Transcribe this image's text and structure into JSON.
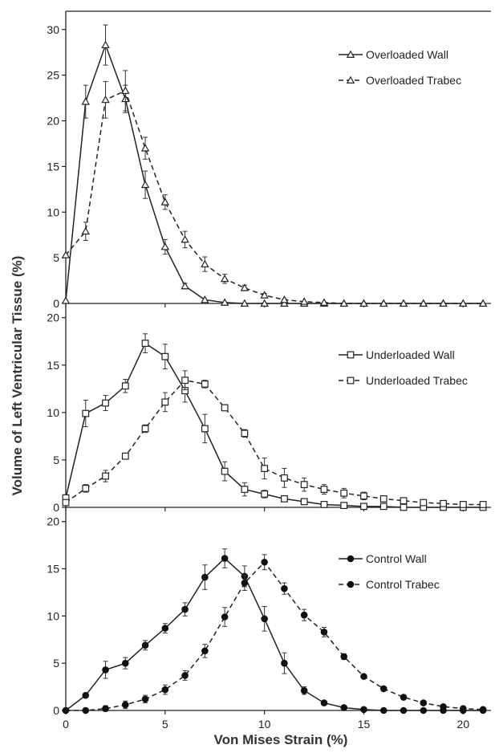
{
  "figure": {
    "xlabel": "Von Mises Strain (%)",
    "ylabel": "Volume of Left Ventricular Tissue (%)"
  },
  "chart_data": [
    {
      "type": "line",
      "panel": "top",
      "xlim": [
        0,
        21.4
      ],
      "ylim": [
        0,
        32
      ],
      "x_ticks": [
        0,
        5,
        10,
        15,
        20
      ],
      "y_ticks": [
        0,
        5,
        10,
        15,
        20,
        25,
        30
      ],
      "legend_position": "top-right",
      "series": [
        {
          "name": "Overloaded Wall",
          "marker": "triangle",
          "line_style": "solid",
          "x": [
            0,
            1,
            2,
            3,
            4,
            5,
            6,
            7,
            8,
            9,
            10,
            11,
            12,
            13,
            14,
            15,
            16,
            17,
            18,
            19,
            20,
            21
          ],
          "y": [
            0.3,
            22.1,
            28.3,
            22.4,
            13.0,
            6.2,
            1.9,
            0.4,
            0.1,
            0,
            0,
            0,
            0,
            0,
            0,
            0,
            0,
            0,
            0,
            0,
            0,
            0
          ],
          "err": [
            0,
            1.8,
            2.2,
            1.5,
            1.5,
            0.8,
            0.3,
            0,
            0,
            0,
            0,
            0,
            0,
            0,
            0,
            0,
            0,
            0,
            0,
            0,
            0,
            0
          ]
        },
        {
          "name": "Overloaded Trabec",
          "marker": "triangle",
          "line_style": "dashed",
          "x": [
            0,
            1,
            2,
            3,
            4,
            5,
            6,
            7,
            8,
            9,
            10,
            11,
            12,
            13,
            14,
            15,
            16,
            17,
            18,
            19,
            20,
            21
          ],
          "y": [
            5.3,
            7.9,
            22.3,
            23.3,
            17.0,
            11.1,
            7.0,
            4.3,
            2.7,
            1.7,
            0.9,
            0.4,
            0.2,
            0.1,
            0,
            0,
            0,
            0,
            0,
            0,
            0,
            0
          ],
          "err": [
            0,
            1.0,
            2.0,
            2.2,
            1.2,
            0.8,
            0.9,
            0.8,
            0.5,
            0.3,
            0.2,
            0.1,
            0,
            0,
            0,
            0,
            0,
            0,
            0,
            0,
            0,
            0
          ]
        }
      ]
    },
    {
      "type": "line",
      "panel": "middle",
      "xlim": [
        0,
        21.4
      ],
      "ylim": [
        0,
        21.5
      ],
      "x_ticks": [
        0,
        5,
        10,
        15,
        20
      ],
      "y_ticks": [
        0,
        5,
        10,
        15,
        20
      ],
      "legend_position": "top-right",
      "series": [
        {
          "name": "Underloaded Wall",
          "marker": "square",
          "line_style": "solid",
          "x": [
            0,
            1,
            2,
            3,
            4,
            5,
            6,
            7,
            8,
            9,
            10,
            11,
            12,
            13,
            14,
            15,
            16,
            17,
            18,
            19,
            20,
            21
          ],
          "y": [
            1.0,
            9.9,
            11.0,
            12.8,
            17.3,
            15.9,
            12.3,
            8.3,
            3.8,
            1.9,
            1.4,
            0.9,
            0.6,
            0.3,
            0.2,
            0.1,
            0.1,
            0,
            0,
            0,
            0,
            0
          ],
          "err": [
            0,
            1.4,
            0.8,
            0.7,
            1.0,
            1.3,
            1.2,
            1.5,
            1.0,
            0.7,
            0.4,
            0.2,
            0.1,
            0,
            0,
            0,
            0,
            0,
            0,
            0,
            0,
            0
          ]
        },
        {
          "name": "Underloaded Trabec",
          "marker": "square",
          "line_style": "dashed",
          "x": [
            0,
            1,
            2,
            3,
            4,
            5,
            6,
            7,
            8,
            9,
            10,
            11,
            12,
            13,
            14,
            15,
            16,
            17,
            18,
            19,
            20,
            21
          ],
          "y": [
            0.5,
            2.0,
            3.3,
            5.4,
            8.3,
            11.1,
            13.4,
            13.0,
            10.5,
            7.8,
            4.1,
            3.1,
            2.4,
            1.9,
            1.5,
            1.2,
            0.9,
            0.7,
            0.5,
            0.4,
            0.3,
            0.3
          ],
          "err": [
            0,
            0.4,
            0.6,
            0.3,
            0.4,
            1.0,
            1.0,
            0.4,
            0.3,
            0.4,
            1.1,
            1.0,
            0.7,
            0.5,
            0.5,
            0.4,
            0.3,
            0.2,
            0.2,
            0.1,
            0.1,
            0.1
          ]
        }
      ]
    },
    {
      "type": "line",
      "panel": "bottom",
      "xlim": [
        0,
        21.4
      ],
      "ylim": [
        0,
        21.5
      ],
      "x_ticks": [
        0,
        5,
        10,
        15,
        20
      ],
      "y_ticks": [
        0,
        5,
        10,
        15,
        20
      ],
      "legend_position": "top-right",
      "series": [
        {
          "name": "Control Wall",
          "marker": "circle",
          "line_style": "solid",
          "x": [
            0,
            1,
            2,
            3,
            4,
            5,
            6,
            7,
            8,
            9,
            10,
            11,
            12,
            13,
            14,
            15,
            16,
            17,
            18,
            19,
            20,
            21
          ],
          "y": [
            0.0,
            1.6,
            4.3,
            5.0,
            6.9,
            8.7,
            10.7,
            14.1,
            16.1,
            14.2,
            9.7,
            5.0,
            2.1,
            0.8,
            0.3,
            0.1,
            0,
            0,
            0,
            0,
            0,
            0
          ],
          "err": [
            0,
            0.2,
            0.9,
            0.6,
            0.5,
            0.5,
            0.7,
            1.3,
            1.0,
            1.1,
            1.3,
            1.1,
            0.4,
            0.1,
            0,
            0,
            0,
            0,
            0,
            0,
            0,
            0
          ]
        },
        {
          "name": "Control Trabec",
          "marker": "circle",
          "line_style": "dashed",
          "x": [
            0,
            1,
            2,
            3,
            4,
            5,
            6,
            7,
            8,
            9,
            10,
            11,
            12,
            13,
            14,
            15,
            16,
            17,
            18,
            19,
            20,
            21
          ],
          "y": [
            0.0,
            0.0,
            0.2,
            0.6,
            1.2,
            2.2,
            3.7,
            6.3,
            9.9,
            13.5,
            15.7,
            12.9,
            10.1,
            8.3,
            5.7,
            3.6,
            2.3,
            1.4,
            0.8,
            0.4,
            0.2,
            0.1
          ],
          "err": [
            0,
            0,
            0.3,
            0.4,
            0.4,
            0.5,
            0.5,
            0.7,
            1.0,
            0.8,
            0.8,
            0.6,
            0.6,
            0.5,
            0.3,
            0.2,
            0.1,
            0.1,
            0.1,
            0,
            0,
            0
          ]
        }
      ]
    }
  ]
}
